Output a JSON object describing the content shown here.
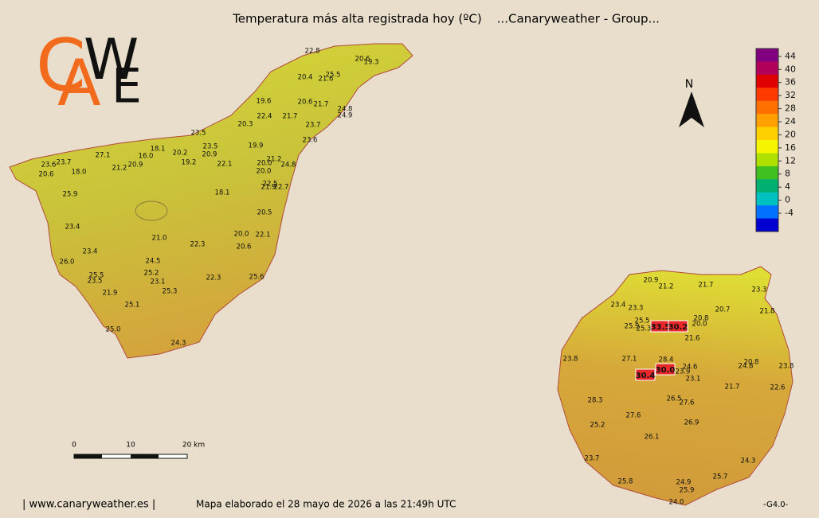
{
  "header": {
    "title": "Temperatura más alta registrada hoy (ºC)    ...Canaryweather - Group..."
  },
  "logo": {
    "letters": [
      "C",
      "A",
      "W",
      "E"
    ],
    "colors": [
      "#f26a1b",
      "#f26a1b",
      "#111111",
      "#111111"
    ]
  },
  "north": "N",
  "colorbar": {
    "ticks": [
      44,
      40,
      36,
      32,
      28,
      24,
      20,
      16,
      12,
      8,
      4,
      0,
      -4
    ],
    "colors": [
      "#800080",
      "#b0005a",
      "#e00000",
      "#ff3a00",
      "#ff7000",
      "#ffa000",
      "#ffd000",
      "#f5f500",
      "#b0e000",
      "#40c020",
      "#00b070",
      "#00c0c0",
      "#0070ff",
      "#0000d0"
    ]
  },
  "scale_bar": {
    "labels": [
      "0",
      "10",
      "20 km"
    ]
  },
  "tenerife": {
    "stations": [
      "22.8",
      "20.6",
      "19.3",
      "20.4",
      "21.6",
      "25.5",
      "19.6",
      "20.6",
      "21.7",
      "24.8",
      "24.9",
      "22.4",
      "21.7",
      "20.3",
      "23.7",
      "23.5",
      "23.6",
      "23.5",
      "19.9",
      "27.1",
      "18.1",
      "16.0",
      "20.2",
      "20.9",
      "21.2",
      "24.8",
      "23.6",
      "23.7",
      "21.2",
      "20.9",
      "19.2",
      "22.1",
      "20.0",
      "20.6",
      "18.0",
      "20.0",
      "22.5",
      "21.9",
      "22.7",
      "18.1",
      "25.9",
      "20.5",
      "23.4",
      "21.0",
      "20.0",
      "22.1",
      "22.3",
      "20.6",
      "23.4",
      "26.0",
      "24.5",
      "25.2",
      "25.6",
      "25.5",
      "23.5",
      "23.1",
      "22.3",
      "21.9",
      "25.3",
      "25.1",
      "25.0",
      "24.3"
    ]
  },
  "gran_canaria": {
    "stations": [
      "20.9",
      "21.2",
      "21.7",
      "23.3",
      "23.4",
      "23.3",
      "20.7",
      "21.8",
      "25.5",
      "25.9",
      "25.3",
      "20.8",
      "20.0",
      "21.6",
      "28.4",
      "27.1",
      "23.8",
      "24.6",
      "23.9",
      "20.8",
      "24.8",
      "23.8",
      "23.1",
      "21.7",
      "22.6",
      "28.3",
      "26.5",
      "27.6",
      "27.6",
      "26.9",
      "25.2",
      "26.1",
      "23.7",
      "24.3",
      "25.7",
      "25.8",
      "24.9",
      "25.9",
      "24.0"
    ],
    "highlights": [
      "33.5",
      "30.2",
      "30.0",
      "30.4"
    ]
  },
  "footer": {
    "site": "| www.canaryweather.es |",
    "note": "Mapa elaborado el 28 mayo de 2026 a las 21:49h UTC",
    "version": "-G4.0-"
  }
}
